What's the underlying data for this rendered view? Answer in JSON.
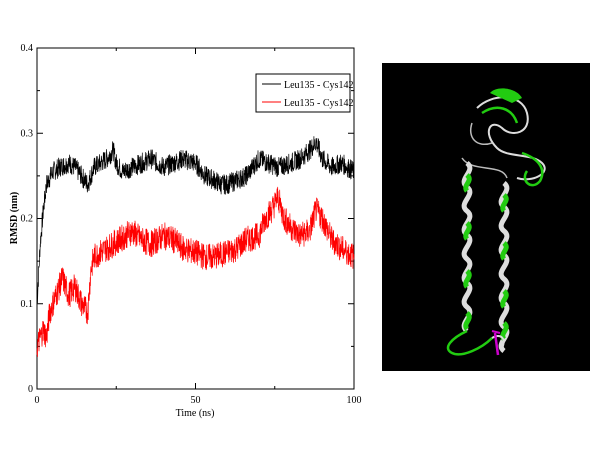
{
  "chart_data": {
    "type": "line",
    "xlabel": "Time (ns)",
    "ylabel": "RMSD (nm)",
    "xlim": [
      0,
      100
    ],
    "ylim": [
      0,
      0.4
    ],
    "x_ticks": [
      "0",
      "50",
      "100"
    ],
    "y_ticks": [
      "0",
      "0.1",
      "0.2",
      "0.3",
      "0.4"
    ],
    "grid": false,
    "legend_position": "top-right",
    "series": [
      {
        "name": "Leu135 - Cys142",
        "color": "#000000",
        "x": [
          0,
          1,
          2,
          3,
          5,
          7,
          10,
          12,
          14,
          16,
          18,
          20,
          22,
          24,
          25,
          27,
          30,
          33,
          36,
          40,
          43,
          46,
          50,
          53,
          56,
          58,
          60,
          63,
          66,
          70,
          73,
          76,
          80,
          83,
          86,
          88,
          90,
          93,
          96,
          100
        ],
        "values": [
          0.1,
          0.17,
          0.21,
          0.24,
          0.255,
          0.26,
          0.265,
          0.26,
          0.25,
          0.24,
          0.26,
          0.265,
          0.27,
          0.28,
          0.265,
          0.255,
          0.26,
          0.265,
          0.27,
          0.26,
          0.265,
          0.27,
          0.265,
          0.25,
          0.245,
          0.24,
          0.24,
          0.245,
          0.25,
          0.27,
          0.265,
          0.26,
          0.265,
          0.27,
          0.28,
          0.29,
          0.27,
          0.26,
          0.265,
          0.255
        ]
      },
      {
        "name": "Leu135 - Cys142",
        "color": "#ff0000",
        "x": [
          0,
          1,
          2,
          3,
          4,
          6,
          8,
          10,
          12,
          14,
          16,
          17,
          18,
          20,
          22,
          24,
          26,
          28,
          30,
          33,
          36,
          40,
          43,
          46,
          50,
          53,
          56,
          60,
          63,
          66,
          70,
          72,
          74,
          76,
          78,
          80,
          83,
          86,
          88,
          90,
          93,
          96,
          100
        ],
        "values": [
          0.05,
          0.06,
          0.07,
          0.06,
          0.09,
          0.11,
          0.13,
          0.11,
          0.12,
          0.1,
          0.09,
          0.14,
          0.155,
          0.16,
          0.165,
          0.17,
          0.175,
          0.18,
          0.185,
          0.175,
          0.17,
          0.18,
          0.175,
          0.165,
          0.16,
          0.155,
          0.155,
          0.16,
          0.165,
          0.175,
          0.18,
          0.2,
          0.21,
          0.225,
          0.2,
          0.19,
          0.18,
          0.185,
          0.21,
          0.2,
          0.175,
          0.165,
          0.155
        ]
      }
    ]
  },
  "figure": {
    "structure_image": "protein-ribbon-structure",
    "structure_bg": "#000000",
    "ribbon_colors": [
      "#22cc11",
      "#dddddd",
      "#cc00cc"
    ]
  }
}
